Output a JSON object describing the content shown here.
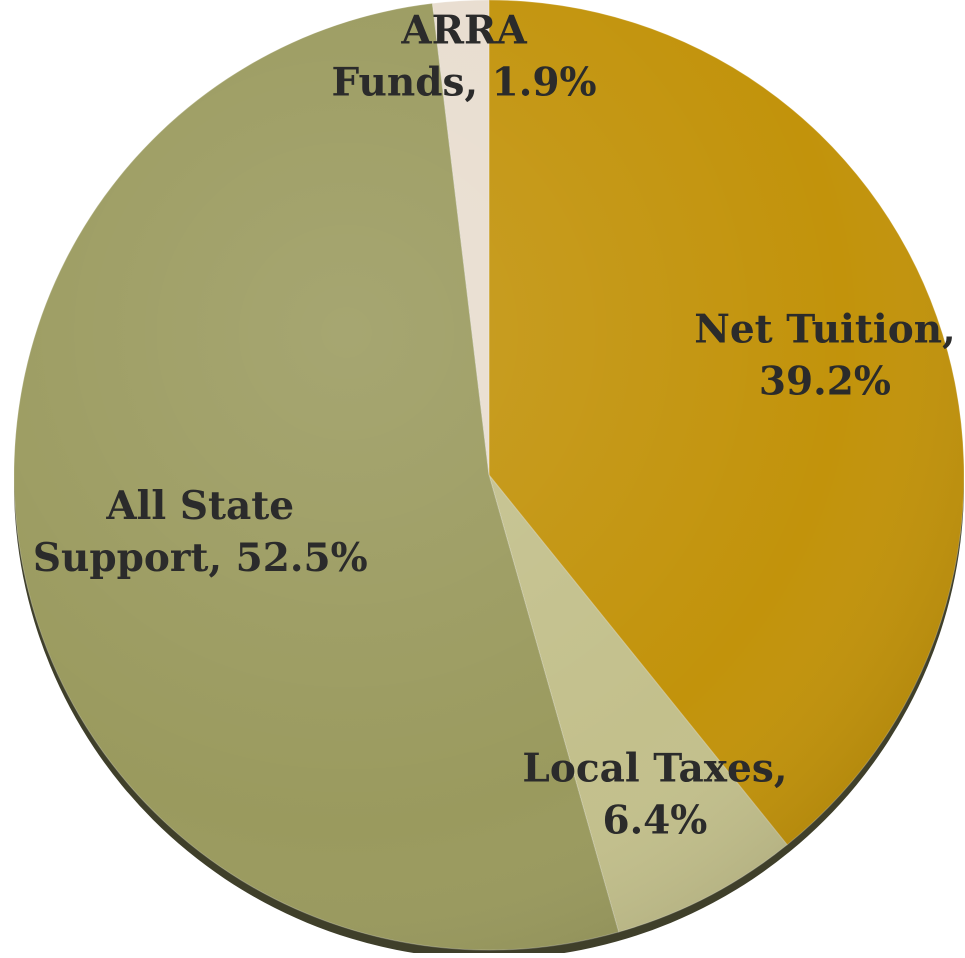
{
  "chart_data": {
    "type": "pie",
    "title": "",
    "start": "12 o'clock",
    "direction": "clockwise",
    "labels_inside": true,
    "slices": [
      {
        "name": "Net Tuition",
        "value": 39.2,
        "label_line1": "Net Tuition,",
        "label_line2": "39.2%",
        "color": "#C2930B"
      },
      {
        "name": "Local Taxes",
        "value": 6.4,
        "label_line1": "Local Taxes,",
        "label_line2": "6.4%",
        "color": "#C3C08C"
      },
      {
        "name": "All State Support",
        "value": 52.5,
        "label_line1": "All State",
        "label_line2": "Support, 52.5%",
        "color": "#9A9A5E"
      },
      {
        "name": "ARRA Funds",
        "value": 1.9,
        "label_line1": "ARRA",
        "label_line2": "Funds, 1.9%",
        "color": "#E8DDCF"
      }
    ]
  }
}
